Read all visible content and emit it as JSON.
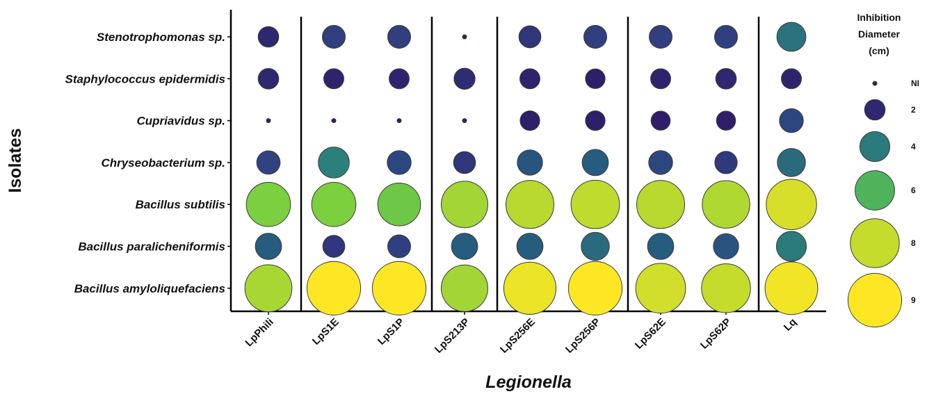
{
  "chart_data": {
    "type": "bubble",
    "xlabel": "Legionella",
    "ylabel": "Isolates",
    "x_categories": [
      "LpPhili",
      "LpS1E",
      "LpS1P",
      "LpS213P",
      "LpS256E",
      "LpS256P",
      "LpS62E",
      "LpS62P",
      "Lq"
    ],
    "y_categories": [
      "Stenotrophomonas sp.",
      "Staphylococcus epidermidis",
      "Cupriavidus sp.",
      "Chryseobacterium sp.",
      "Bacillus subtilis",
      "Bacillus paralicheniformis",
      "Bacillus amyloliquefaciens"
    ],
    "values": [
      [
        2.0,
        2.5,
        2.5,
        0,
        2.3,
        2.5,
        2.5,
        2.5,
        3.8
      ],
      [
        2.0,
        1.9,
        1.9,
        2.1,
        1.9,
        1.8,
        1.9,
        2.0,
        1.9
      ],
      [
        0,
        0,
        0,
        0,
        1.8,
        1.8,
        1.7,
        1.7,
        2.7
      ],
      [
        2.6,
        4.2,
        2.7,
        2.3,
        3.0,
        3.2,
        2.7,
        2.4,
        3.6
      ],
      [
        7.0,
        7.0,
        6.7,
        7.5,
        7.8,
        7.9,
        7.8,
        7.7,
        8.3
      ],
      [
        3.2,
        2.3,
        2.5,
        3.2,
        3.2,
        3.6,
        3.2,
        3.0,
        4.0
      ],
      [
        7.6,
        9.0,
        9.0,
        7.5,
        8.7,
        9.0,
        8.2,
        8.0,
        8.8
      ]
    ],
    "zero_label": "NI",
    "legend": {
      "title_lines": [
        "Inhibition",
        "Diameter",
        "(cm)"
      ],
      "labels": [
        "NI",
        "2",
        "4",
        "6",
        "8",
        "9"
      ],
      "values": [
        0,
        2,
        4,
        6,
        8,
        9
      ],
      "placement": "right"
    },
    "separators_after": [
      "LpPhili",
      "LpS1P",
      "LpS213P",
      "LpS256P",
      "LpS62P"
    ],
    "colormap": "viridis",
    "colors": {
      "NI": "#3b1c56",
      "2": "#2e2f78",
      "4": "#2b7a7c",
      "6": "#4fb35b",
      "8": "#c6dc2c",
      "9": "#fde725"
    },
    "grid": false
  }
}
